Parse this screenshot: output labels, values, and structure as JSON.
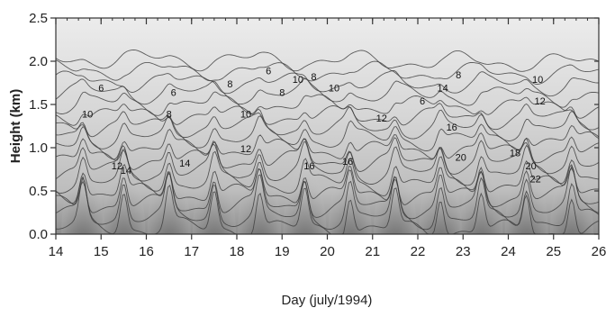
{
  "chart_data": {
    "type": "contour",
    "title": "",
    "xlabel": "Day (july/1994)",
    "ylabel": "Height (km)",
    "xlim": [
      14,
      26
    ],
    "ylim": [
      0.0,
      2.5
    ],
    "x_ticks": [
      "14",
      "15",
      "16",
      "17",
      "18",
      "19",
      "20",
      "21",
      "22",
      "23",
      "24",
      "25",
      "26"
    ],
    "y_ticks": [
      "0.0",
      "0.5",
      "1.0",
      "1.5",
      "2.0",
      "2.5"
    ],
    "contour_levels": [
      4,
      6,
      8,
      10,
      12,
      14,
      16,
      18,
      20,
      22
    ],
    "colormap": "grayscale (light = low, dark = high)",
    "contour_labels": [
      {
        "text": "6",
        "x": 15.0,
        "y": 1.65
      },
      {
        "text": "10",
        "x": 14.7,
        "y": 1.35
      },
      {
        "text": "12",
        "x": 15.35,
        "y": 0.75
      },
      {
        "text": "14",
        "x": 15.55,
        "y": 0.7
      },
      {
        "text": "6",
        "x": 16.6,
        "y": 1.6
      },
      {
        "text": "8",
        "x": 16.5,
        "y": 1.35
      },
      {
        "text": "14",
        "x": 16.85,
        "y": 0.78
      },
      {
        "text": "8",
        "x": 17.85,
        "y": 1.7
      },
      {
        "text": "10",
        "x": 18.2,
        "y": 1.35
      },
      {
        "text": "12",
        "x": 18.2,
        "y": 0.95
      },
      {
        "text": "6",
        "x": 18.7,
        "y": 1.85
      },
      {
        "text": "8",
        "x": 19.0,
        "y": 1.6
      },
      {
        "text": "10",
        "x": 19.35,
        "y": 1.75
      },
      {
        "text": "8",
        "x": 19.7,
        "y": 1.78
      },
      {
        "text": "10",
        "x": 20.15,
        "y": 1.65
      },
      {
        "text": "16",
        "x": 19.6,
        "y": 0.75
      },
      {
        "text": "16",
        "x": 20.45,
        "y": 0.8
      },
      {
        "text": "12",
        "x": 21.2,
        "y": 1.3
      },
      {
        "text": "6",
        "x": 22.1,
        "y": 1.5
      },
      {
        "text": "14",
        "x": 22.55,
        "y": 1.65
      },
      {
        "text": "8",
        "x": 22.9,
        "y": 1.8
      },
      {
        "text": "16",
        "x": 22.75,
        "y": 1.2
      },
      {
        "text": "20",
        "x": 22.95,
        "y": 0.85
      },
      {
        "text": "10",
        "x": 24.65,
        "y": 1.75
      },
      {
        "text": "12",
        "x": 24.7,
        "y": 1.5
      },
      {
        "text": "18",
        "x": 24.15,
        "y": 0.9
      },
      {
        "text": "20",
        "x": 24.5,
        "y": 0.75
      },
      {
        "text": "22",
        "x": 24.6,
        "y": 0.6
      }
    ]
  }
}
